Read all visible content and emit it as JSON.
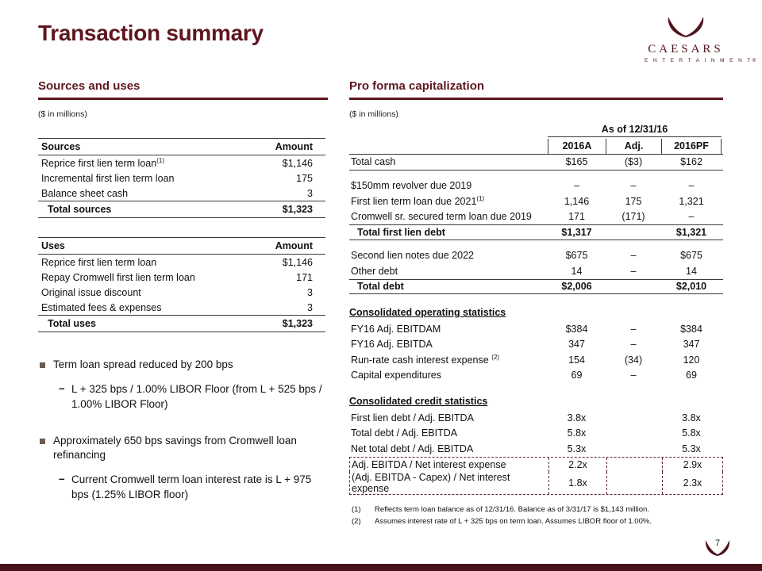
{
  "slide": {
    "title": "Transaction summary",
    "page_number": "7"
  },
  "colors": {
    "accent_maroon": "#5e171e",
    "bullet_square": "#6e5a4e",
    "footer_bar": "#47121a",
    "dashed_box": "#5e2a30"
  },
  "logo": {
    "brand": "CAESARS",
    "brand_sub": "E N T E R T A I N M E N T®"
  },
  "sources_uses": {
    "section_title": "Sources and uses",
    "units_note": "($ in millions)",
    "sources": {
      "col_label": "Sources",
      "col_amount": "Amount",
      "rows": [
        {
          "label": "Reprice first lien term loan",
          "sup": "(1)",
          "amount": "$1,146"
        },
        {
          "label": "Incremental first lien term loan",
          "amount": "175"
        },
        {
          "label": "Balance sheet cash",
          "amount": "3"
        }
      ],
      "total_label": "Total sources",
      "total_amount": "$1,323"
    },
    "uses": {
      "col_label": "Uses",
      "col_amount": "Amount",
      "rows": [
        {
          "label": "Reprice first lien term loan",
          "amount": "$1,146"
        },
        {
          "label": "Repay Cromwell first lien term loan",
          "amount": "171"
        },
        {
          "label": "Original issue discount",
          "amount": "3"
        },
        {
          "label": "Estimated fees & expenses",
          "amount": "3"
        }
      ],
      "total_label": "Total uses",
      "total_amount": "$1,323"
    },
    "bullets": [
      {
        "text": "Term loan spread reduced by 200 bps",
        "subs": [
          "L + 325 bps / 1.00% LIBOR Floor (from L + 525 bps / 1.00% LIBOR Floor)"
        ]
      },
      {
        "text": "Approximately 650 bps savings from Cromwell loan refinancing",
        "subs": [
          "Current Cromwell term loan interest rate is L + 975 bps (1.25% LIBOR floor)"
        ]
      }
    ]
  },
  "capitalization": {
    "section_title": "Pro forma capitalization",
    "units_note": "($ in millions)",
    "span_header": "As of 12/31/16",
    "columns": [
      "2016A",
      "Adj.",
      "2016PF"
    ],
    "rows": [
      {
        "type": "data",
        "label": "Total cash",
        "v": [
          "$165",
          "($3)",
          "$162"
        ],
        "bottom": true
      },
      {
        "type": "spacer"
      },
      {
        "type": "data",
        "label": "$150mm revolver due 2019",
        "v": [
          "–",
          "–",
          "–"
        ]
      },
      {
        "type": "data",
        "label": "First lien term loan due 2021",
        "sup": "(1)",
        "v": [
          "1,146",
          "175",
          "1,321"
        ]
      },
      {
        "type": "data",
        "label": "Cromwell sr. secured term loan due 2019",
        "v": [
          "171",
          "(171)",
          "–"
        ]
      },
      {
        "type": "total",
        "label": "Total first lien debt",
        "v": [
          "$1,317",
          "",
          "$1,321"
        ]
      },
      {
        "type": "spacer"
      },
      {
        "type": "data",
        "label": "Second lien notes due 2022",
        "v": [
          "$675",
          "–",
          "$675"
        ]
      },
      {
        "type": "data",
        "label": "Other debt",
        "v": [
          "14",
          "–",
          "14"
        ]
      },
      {
        "type": "total",
        "label": "Total debt",
        "v": [
          "$2,006",
          "",
          "$2,010"
        ]
      },
      {
        "type": "spacer"
      },
      {
        "type": "section",
        "label": "Consolidated operating statistics"
      },
      {
        "type": "data",
        "label": "FY16 Adj. EBITDAM",
        "v": [
          "$384",
          "–",
          "$384"
        ]
      },
      {
        "type": "data",
        "label": "FY16 Adj. EBITDA",
        "v": [
          "347",
          "–",
          "347"
        ]
      },
      {
        "type": "data",
        "label": "Run-rate cash interest expense ",
        "sup": "(2)",
        "v": [
          "154",
          "(34)",
          "120"
        ]
      },
      {
        "type": "data",
        "label": "Capital expenditures",
        "v": [
          "69",
          "–",
          "69"
        ]
      },
      {
        "type": "spacer"
      },
      {
        "type": "section",
        "label": "Consolidated credit statistics"
      },
      {
        "type": "data",
        "label": "First lien debt / Adj. EBITDA",
        "v": [
          "3.8x",
          "",
          "3.8x"
        ]
      },
      {
        "type": "data",
        "label": "Total debt / Adj. EBITDA",
        "v": [
          "5.8x",
          "",
          "5.8x"
        ]
      },
      {
        "type": "data",
        "label": "Net total debt / Adj. EBITDA",
        "v": [
          "5.3x",
          "",
          "5.3x"
        ]
      },
      {
        "type": "data",
        "label": "Adj. EBITDA / Net interest expense",
        "v": [
          "2.2x",
          "",
          "2.9x"
        ],
        "hl": "first"
      },
      {
        "type": "data",
        "label": "(Adj. EBITDA - Capex) / Net interest expense",
        "v": [
          "1.8x",
          "",
          "2.3x"
        ],
        "hl": "last"
      }
    ],
    "footnotes": [
      {
        "num": "(1)",
        "text": "Reflects term loan balance as of 12/31/16. Balance as of 3/31/17 is $1,143 million."
      },
      {
        "num": "(2)",
        "text": "Assumes interest rate of L + 325 bps on term loan. Assumes LIBOR floor of 1.00%."
      }
    ]
  }
}
